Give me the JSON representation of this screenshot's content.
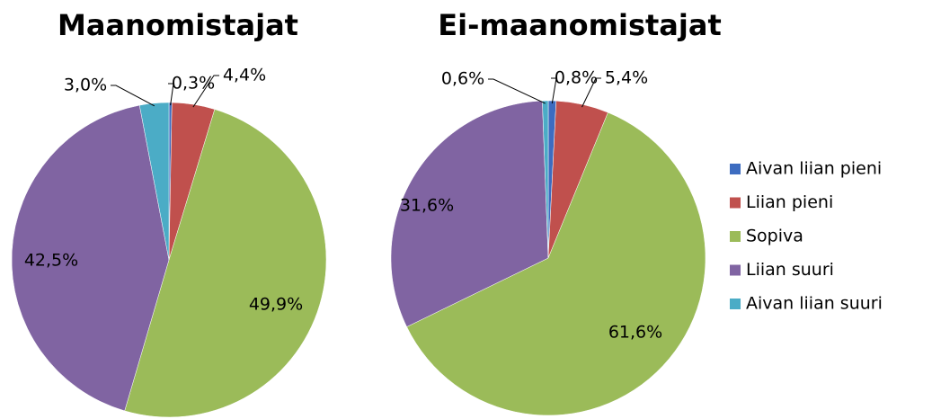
{
  "categories": [
    "Aivan liian pieni",
    "Liian pieni",
    "Sopiva",
    "Liian suuri",
    "Aivan liian suuri"
  ],
  "colors": [
    "#3d6cc0",
    "#c0504d",
    "#9bbb59",
    "#8064a2",
    "#4bacc6"
  ],
  "chart_data": [
    {
      "type": "pie",
      "title": "Maanomistajat",
      "values": [
        0.3,
        4.4,
        49.9,
        42.5,
        3.0
      ],
      "value_labels": [
        "0,3%",
        "4,4%",
        "49,9%",
        "42,5%",
        "3,0%"
      ]
    },
    {
      "type": "pie",
      "title": "Ei-maanomistajat",
      "values": [
        0.8,
        5.4,
        61.6,
        31.6,
        0.6
      ],
      "value_labels": [
        "0,8%",
        "5,4%",
        "61,6%",
        "31,6%",
        "0,6%"
      ]
    }
  ]
}
